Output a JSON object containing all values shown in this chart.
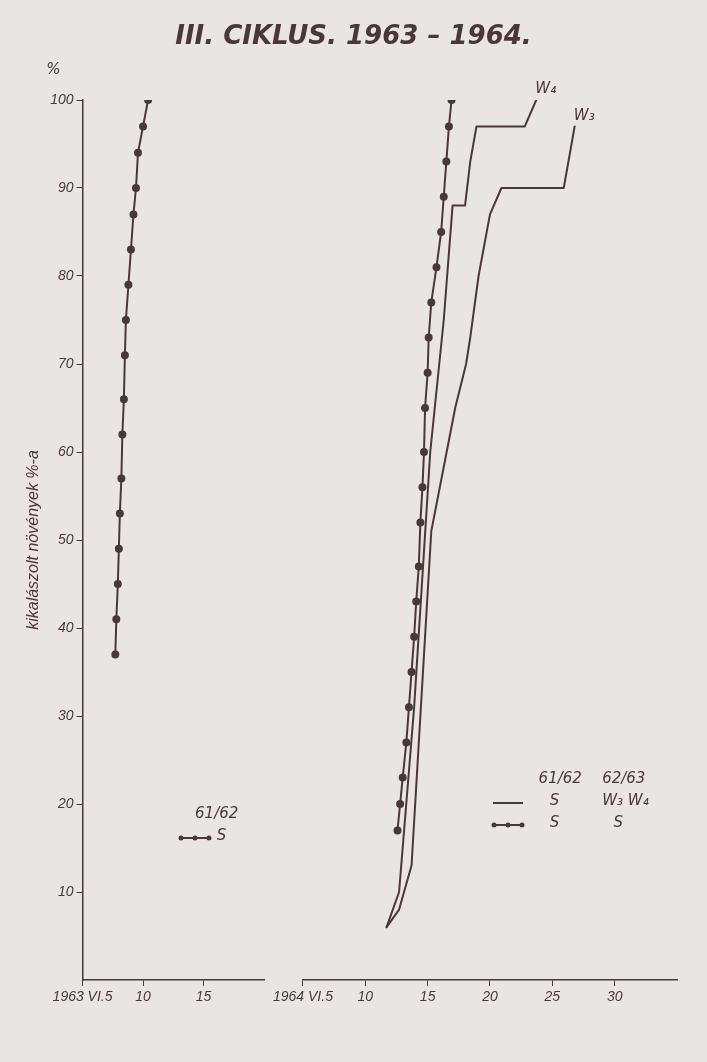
{
  "chart_data": [
    {
      "type": "line",
      "title": "III. CIKLUS. 1963 – 1964.",
      "ylabel": "kikalászolt növények %-a",
      "annotations": [
        "%",
        "61/62",
        "S"
      ],
      "xlim": [
        "1963-06-05",
        "1963-06-20"
      ],
      "xticks": [
        {
          "value": "1963-06-05",
          "label": "1963 VI.5"
        },
        {
          "value": "1963-06-10",
          "label": "10"
        },
        {
          "value": "1963-06-15",
          "label": "15"
        }
      ],
      "ylim": [
        0,
        100
      ],
      "yticks": [
        10,
        20,
        30,
        40,
        50,
        60,
        70,
        80,
        90,
        100
      ],
      "grid": false,
      "series": [
        {
          "color": "#4a3838",
          "marker": "circle",
          "x": [
            "1963-06-07T17:00",
            "1963-06-07T19:00",
            "1963-06-07T22:00",
            "1963-06-08T00:00",
            "1963-06-08T02:00",
            "1963-06-08T05:00",
            "1963-06-08T07:00",
            "1963-06-08T10:00",
            "1963-06-08T12:00",
            "1963-06-08T14:00",
            "1963-06-08T19:00",
            "1963-06-09T00:00",
            "1963-06-09T05:00",
            "1963-06-09T10:00",
            "1963-06-09T14:00",
            "1963-06-10T00:00",
            "1963-06-10T10:00"
          ],
          "values": [
            37,
            41,
            45,
            49,
            53,
            57,
            62,
            66,
            71,
            75,
            79,
            83,
            87,
            90,
            94,
            97,
            100
          ]
        }
      ]
    },
    {
      "type": "line",
      "annotations": [
        "61/62",
        "62/63",
        "S",
        "W₃ W₄",
        "S",
        "S"
      ],
      "xlim": [
        "1964-06-05",
        "1964-07-05"
      ],
      "xticks": [
        {
          "value": "1964-06-05",
          "label": "1964 VI.5"
        },
        {
          "value": "1964-06-10",
          "label": "10"
        },
        {
          "value": "1964-06-15",
          "label": "15"
        },
        {
          "value": "1964-06-20",
          "label": "20"
        },
        {
          "value": "1964-06-25",
          "label": "25"
        },
        {
          "value": "1964-06-30",
          "label": "30"
        }
      ],
      "ylim": [
        0,
        100
      ],
      "yticks": [
        10,
        20,
        30,
        40,
        50,
        60,
        70,
        80,
        90,
        100
      ],
      "tick_labels": "x",
      "grid": false,
      "series": [
        {
          "color": "#4a3838",
          "marker": "circle",
          "x": [
            "1964-06-12T14:00",
            "1964-06-12T19:00",
            "1964-06-13T00:00",
            "1964-06-13T07:00",
            "1964-06-13T12:00",
            "1964-06-13T17:00",
            "1964-06-13T22:00",
            "1964-06-14T02:00",
            "1964-06-14T07:00",
            "1964-06-14T10:00",
            "1964-06-14T14:00",
            "1964-06-14T17:00",
            "1964-06-14T19:00",
            "1964-06-15T00:00",
            "1964-06-15T02:00",
            "1964-06-15T07:00",
            "1964-06-15T17:00",
            "1964-06-16T02:00",
            "1964-06-16T07:00",
            "1964-06-16T12:00",
            "1964-06-16T17:00",
            "1964-06-16T22:00"
          ],
          "values": [
            17,
            20,
            23,
            27,
            31,
            35,
            39,
            43,
            47,
            52,
            56,
            60,
            65,
            69,
            73,
            77,
            81,
            85,
            89,
            93,
            97,
            100
          ]
        },
        {
          "name": "W₃",
          "color": "#4a3838",
          "marker": "none",
          "x": [
            "1964-06-11T17:00",
            "1964-06-12T17:00",
            "1964-06-13T17:00",
            "1964-06-15T07:00",
            "1964-06-17T05:00",
            "1964-06-18T02:00",
            "1964-06-18T10:00",
            "1964-06-19T02:00",
            "1964-06-20T00:00",
            "1964-06-20T22:00",
            "1964-06-25T22:00",
            "1964-06-26T19:00"
          ],
          "values": [
            6,
            8,
            13,
            51,
            65,
            70,
            73,
            80,
            87,
            90,
            90,
            97
          ]
        },
        {
          "name": "W₄",
          "color": "#4a3838",
          "marker": "none",
          "x": [
            "1964-06-11T17:00",
            "1964-06-12T17:00",
            "1964-06-13T22:00",
            "1964-06-15T05:00",
            "1964-06-16T07:00",
            "1964-06-17T00:00",
            "1964-06-18T00:00",
            "1964-06-18T10:00",
            "1964-06-18T22:00",
            "1964-06-22T19:00",
            "1964-06-23T17:00"
          ],
          "values": [
            6,
            10,
            31,
            60,
            75,
            88,
            88,
            93,
            97,
            97,
            100
          ]
        }
      ]
    }
  ]
}
